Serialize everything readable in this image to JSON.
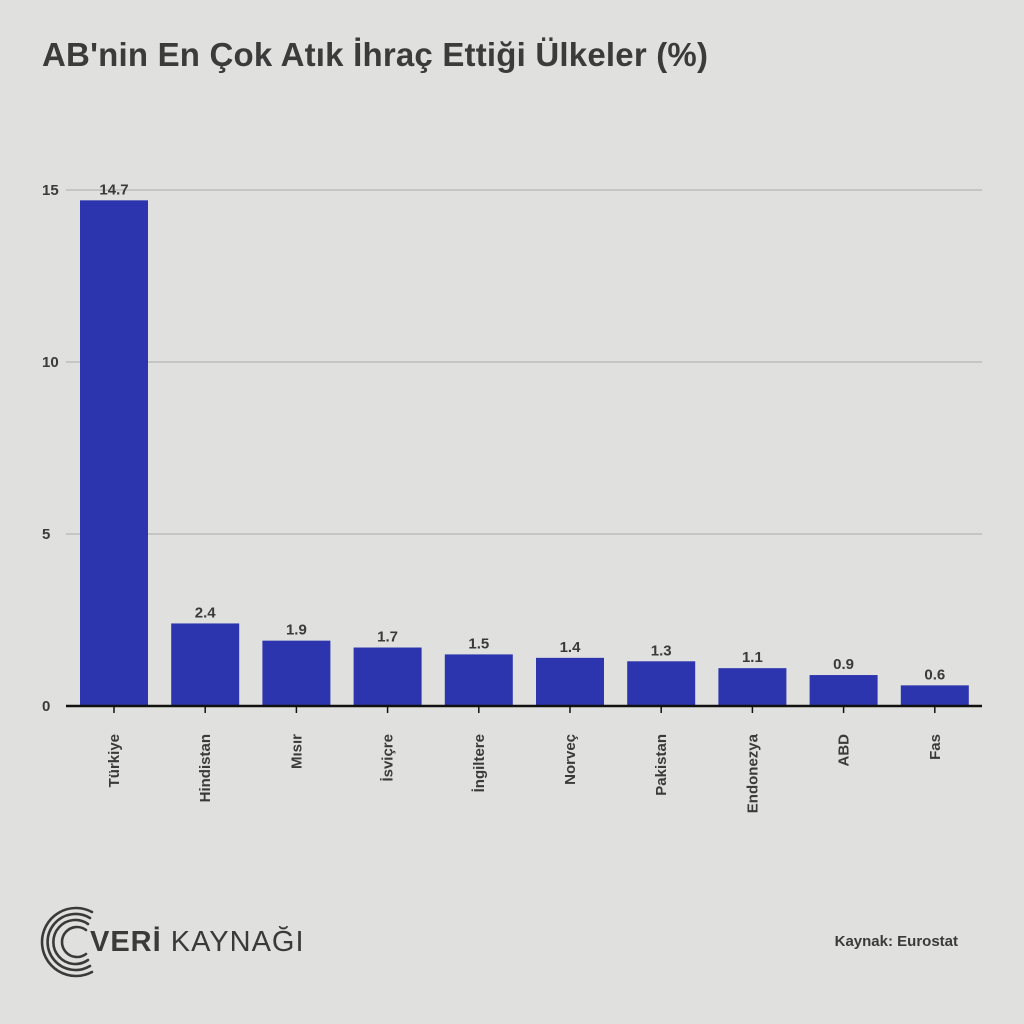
{
  "title": "AB'nin En Çok Atık İhraç Ettiği Ülkeler (%)",
  "chart_data": {
    "type": "bar",
    "categories": [
      "Türkiye",
      "Hindistan",
      "Mısır",
      "İsviçre",
      "İngiltere",
      "Norveç",
      "Pakistan",
      "Endonezya",
      "ABD",
      "Fas"
    ],
    "values": [
      14.7,
      2.4,
      1.9,
      1.7,
      1.5,
      1.4,
      1.3,
      1.1,
      0.9,
      0.6
    ],
    "data_labels": [
      "14.7",
      "2.4",
      "1.9",
      "1.7",
      "1.5",
      "1.4",
      "1.3",
      "1.1",
      "0.9",
      "0.6"
    ],
    "yticks": [
      0,
      5,
      10,
      15
    ],
    "ylim": [
      0,
      15
    ],
    "grid": true,
    "bar_color": "#2d35ae"
  },
  "logo": {
    "text_bold": "VERİ",
    "text_light": " KAYNAĞI"
  },
  "source": "Kaynak: Eurostat",
  "colors": {
    "background": "#e0e1df",
    "text": "#3a3a3a",
    "grid": "#a9a9a9",
    "axis": "#111111"
  }
}
